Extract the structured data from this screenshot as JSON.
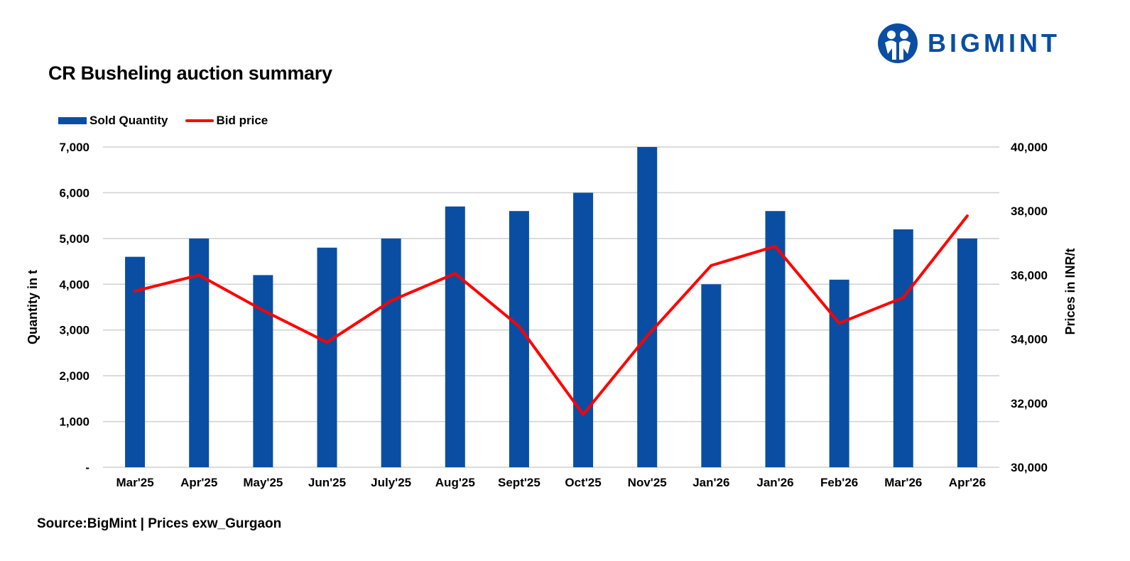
{
  "brand": {
    "name": "BIGMINT",
    "color": "#0a4ea3",
    "logo_icon": "bigmint-people-globe-icon"
  },
  "title": "CR Busheling auction summary",
  "source": "Source:BigMint | Prices exw_Gurgaon",
  "legend": {
    "bar_label": "Sold Quantity",
    "line_label": "Bid price"
  },
  "chart_data": {
    "type": "bar",
    "title": "CR Busheling auction summary",
    "categories": [
      "Mar'25",
      "Apr'25",
      "May'25",
      "Jun'25",
      "July'25",
      "Aug'25",
      "Sept'25",
      "Oct'25",
      "Nov'25",
      "Jan'26",
      "Jan'26",
      "Feb'26",
      "Mar'26",
      "Apr'26"
    ],
    "series": [
      {
        "name": "Sold Quantity",
        "type": "bar",
        "axis": "left",
        "color": "#0a4ea3",
        "values": [
          4600,
          5000,
          4200,
          4800,
          5000,
          5700,
          5600,
          6000,
          7000,
          4000,
          5600,
          4100,
          5200,
          5000
        ]
      },
      {
        "name": "Bid price",
        "type": "line",
        "axis": "right",
        "color": "#ff0000",
        "values": [
          35500,
          36000,
          34900,
          33900,
          35200,
          36050,
          34400,
          31650,
          34100,
          36300,
          36900,
          34500,
          35300,
          37850
        ]
      }
    ],
    "ylabel": "Quantity in t",
    "y2label": "Prices in INR/t",
    "ylim": [
      0,
      7000
    ],
    "y2lim": [
      30000,
      40000
    ],
    "yticks": [
      "-",
      "1,000",
      "2,000",
      "3,000",
      "4,000",
      "5,000",
      "6,000",
      "7,000"
    ],
    "y2ticks": [
      "30,000",
      "32,000",
      "34,000",
      "36,000",
      "38,000",
      "40,000"
    ],
    "grid": true,
    "legend_position": "top-left"
  }
}
